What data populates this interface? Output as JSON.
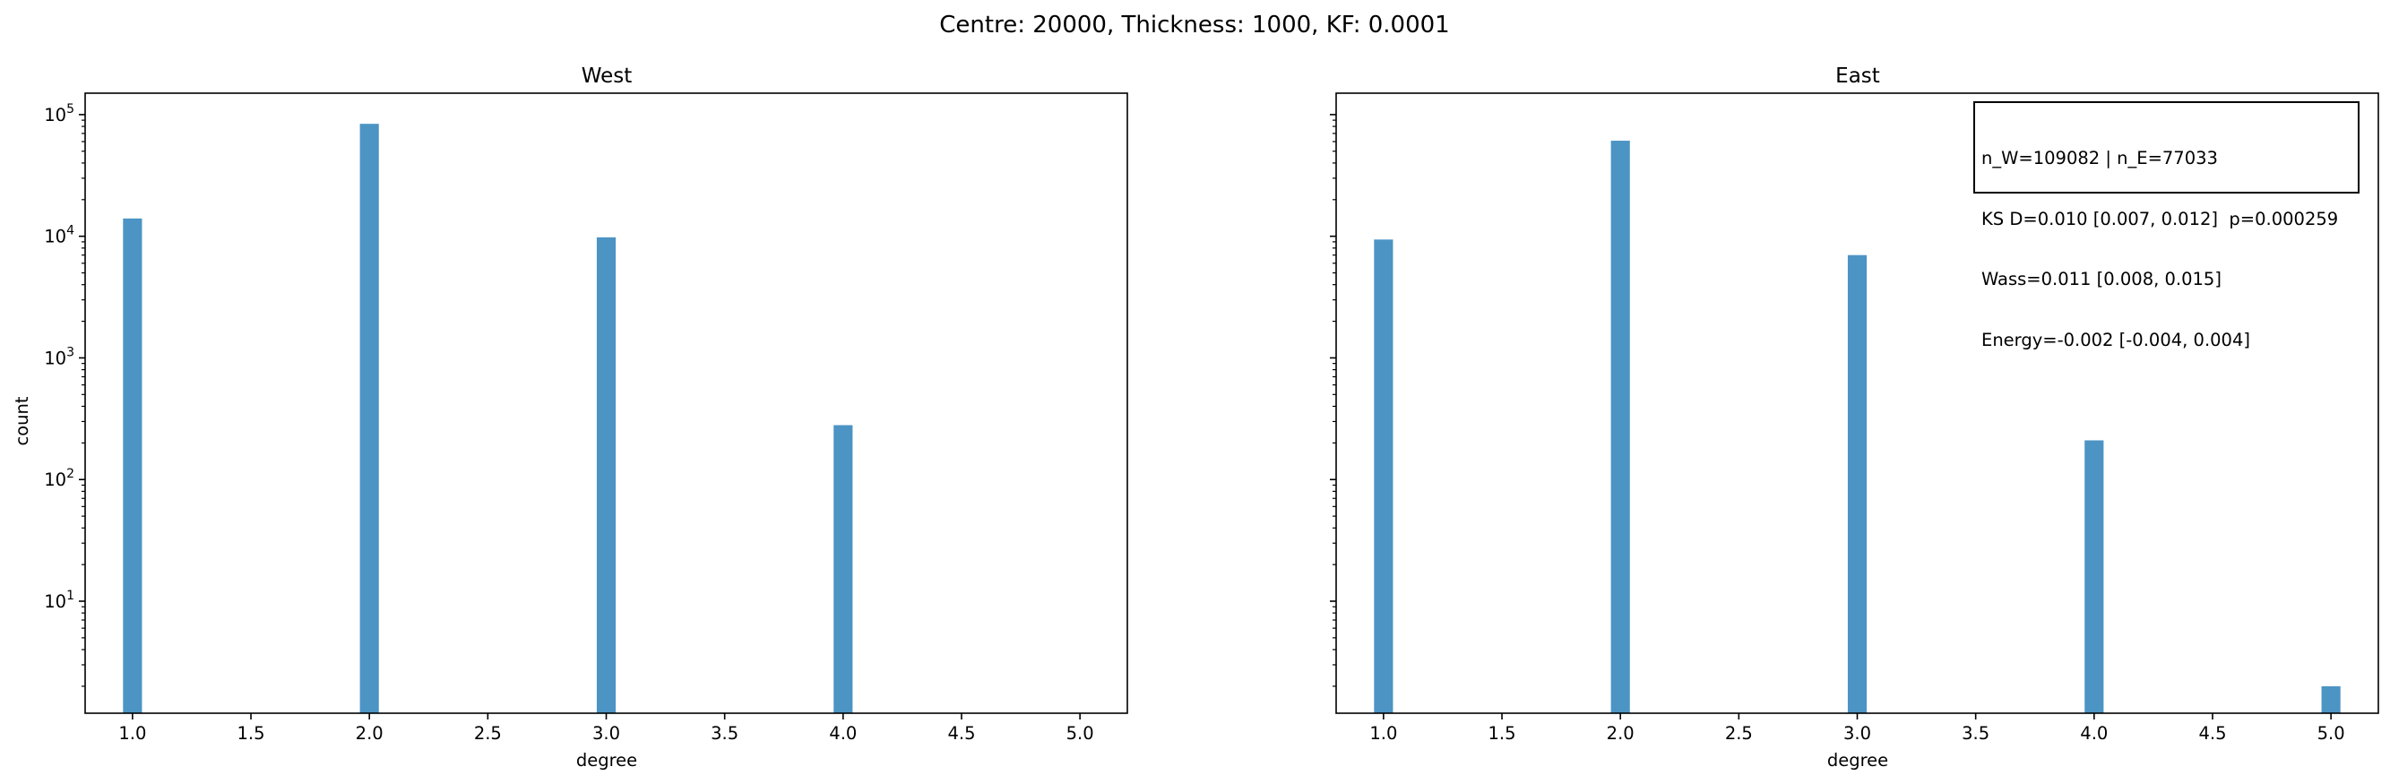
{
  "suptitle": "Centre: 20000, Thickness: 1000, KF: 0.0001",
  "chart_data": [
    {
      "type": "bar",
      "title": "West",
      "xlabel": "degree",
      "ylabel": "count",
      "yscale": "log",
      "xlim": [
        0.8,
        5.2
      ],
      "ylim": [
        1.2,
        150000
      ],
      "bar_width": 0.08,
      "color": "#4c94c4",
      "x": [
        1,
        2,
        3,
        4
      ],
      "values": [
        14000,
        84000,
        9800,
        280
      ],
      "xticks": [
        "1.0",
        "1.5",
        "2.0",
        "2.5",
        "3.0",
        "3.5",
        "4.0",
        "4.5",
        "5.0"
      ],
      "ytick_exponents": [
        "1",
        "2",
        "3",
        "4",
        "5"
      ],
      "ytick_base": "10",
      "grid": false
    },
    {
      "type": "bar",
      "title": "East",
      "xlabel": "degree",
      "ylabel": "",
      "yscale": "log",
      "xlim": [
        0.8,
        5.2
      ],
      "ylim": [
        1.2,
        150000
      ],
      "bar_width": 0.08,
      "color": "#4c94c4",
      "x": [
        1,
        2,
        3,
        4,
        5
      ],
      "values": [
        9400,
        61000,
        7000,
        210,
        2
      ],
      "xticks": [
        "1.0",
        "1.5",
        "2.0",
        "2.5",
        "3.0",
        "3.5",
        "4.0",
        "4.5",
        "5.0"
      ],
      "ytick_exponents": [],
      "ytick_base": "10",
      "grid": false,
      "annotation": [
        "n_W=109082 | n_E=77033",
        "KS D=0.010 [0.007, 0.012]  p=0.000259",
        "Wass=0.011 [0.008, 0.015]",
        "Energy=-0.002 [-0.004, 0.004]"
      ],
      "annotation_placement": "top-right"
    }
  ]
}
